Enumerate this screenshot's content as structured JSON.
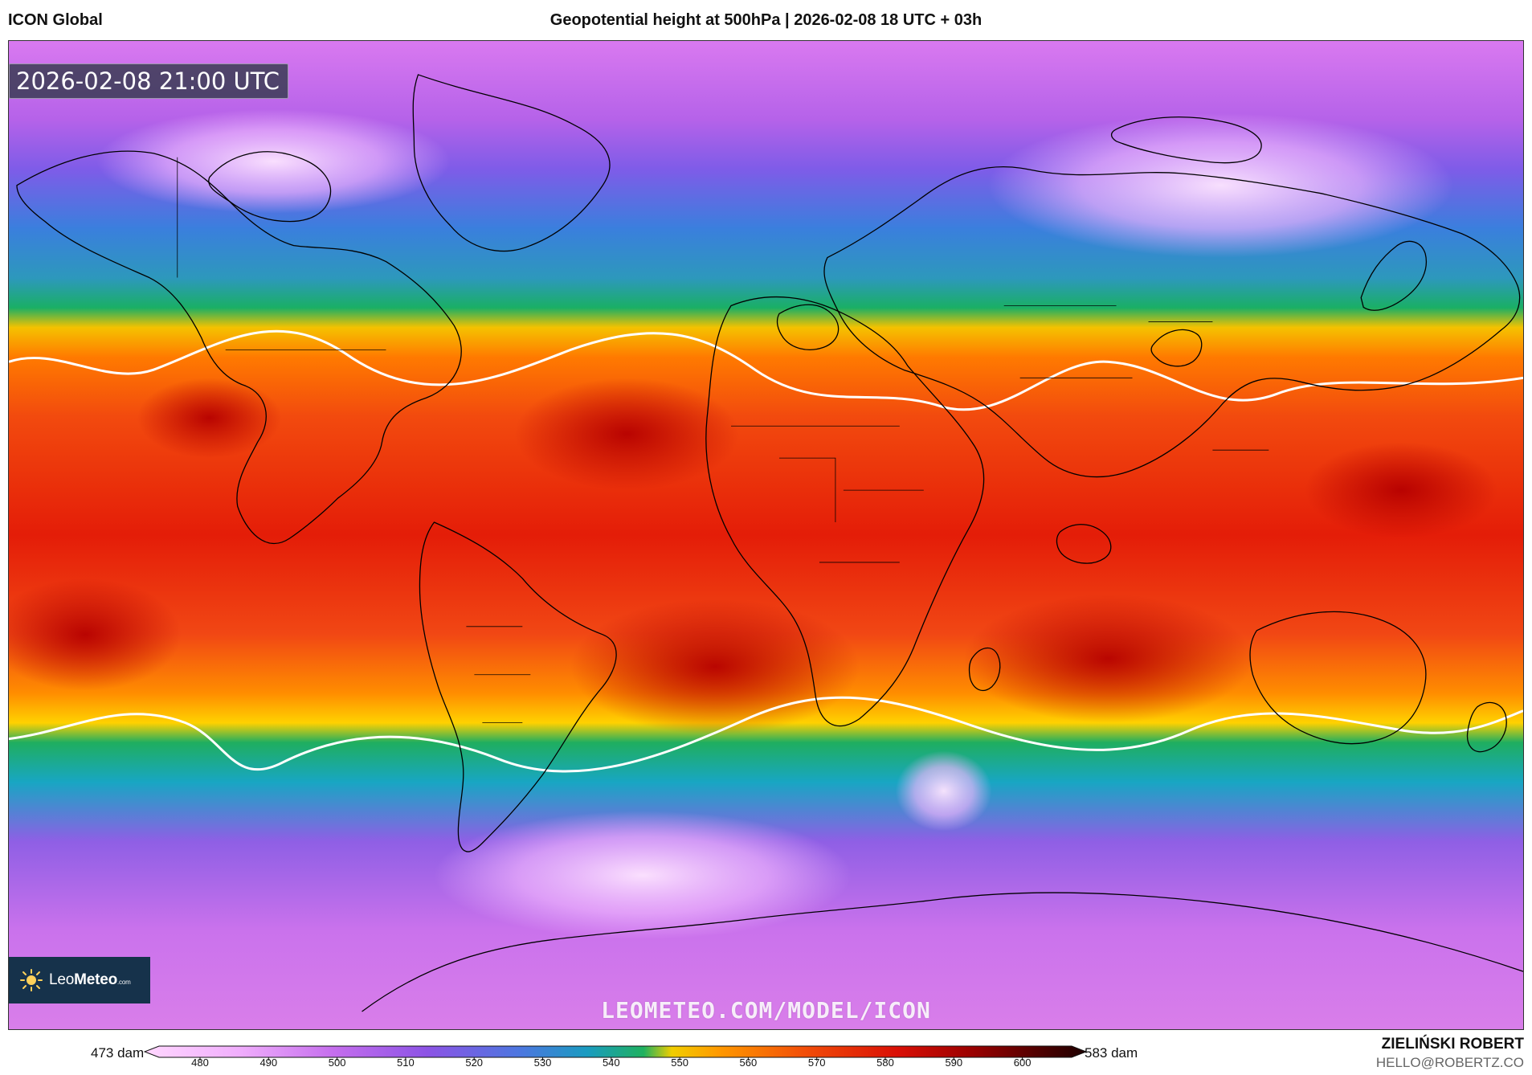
{
  "header": {
    "left_title": "ICON Global",
    "center_title": "Geopotential height at 500hPa | 2026-02-08 18 UTC + 03h"
  },
  "map": {
    "timestamp": "2026-02-08 21:00 UTC",
    "watermark": "LEOMETEO.COM/MODEL/ICON",
    "logo": {
      "text_prefix": "Leo",
      "text_brand": "Meteo",
      "text_suffix": ".com"
    }
  },
  "legend": {
    "min_label": "473 dam",
    "max_label": "583 dam",
    "ticks": [
      "480",
      "490",
      "500",
      "510",
      "520",
      "530",
      "540",
      "550",
      "560",
      "570",
      "580",
      "590",
      "600"
    ]
  },
  "credits": {
    "name": "ZIELIŃSKI ROBERT",
    "email": "HELLO@ROBERTZ.CO"
  },
  "theme": {
    "background": "#ffffff",
    "map_outline": "#000000",
    "contour": "#ffffff"
  }
}
